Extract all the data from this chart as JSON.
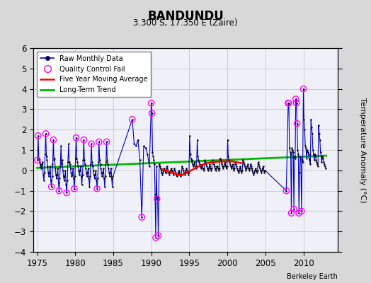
{
  "title": "BANDUNDU",
  "subtitle": "3.300 S, 17.350 E (Zaire)",
  "ylabel": "Temperature Anomaly (°C)",
  "credit": "Berkeley Earth",
  "xlim": [
    1974.5,
    2014.5
  ],
  "ylim": [
    -4,
    6
  ],
  "yticks": [
    -4,
    -3,
    -2,
    -1,
    0,
    1,
    2,
    3,
    4,
    5,
    6
  ],
  "xticks": [
    1975,
    1980,
    1985,
    1990,
    1995,
    2000,
    2005,
    2010
  ],
  "bg_color": "#e0e0e0",
  "plot_bg_color": "#f0f0f0",
  "grid_color": "#cccccc",
  "raw_color": "#0000cc",
  "qc_color": "#ff00ff",
  "moving_avg_color": "#ff0000",
  "trend_color": "#00bb00",
  "raw_monthly_data": [
    [
      1975.042,
      0.5
    ],
    [
      1975.125,
      1.7
    ],
    [
      1975.208,
      0.6
    ],
    [
      1975.292,
      0.4
    ],
    [
      1975.375,
      0.3
    ],
    [
      1975.458,
      0.2
    ],
    [
      1975.542,
      0.1
    ],
    [
      1975.625,
      0.3
    ],
    [
      1975.708,
      0.4
    ],
    [
      1975.792,
      -0.2
    ],
    [
      1975.875,
      -0.5
    ],
    [
      1975.958,
      -0.1
    ],
    [
      1976.042,
      0.8
    ],
    [
      1976.125,
      1.8
    ],
    [
      1976.208,
      0.7
    ],
    [
      1976.292,
      0.5
    ],
    [
      1976.375,
      0.2
    ],
    [
      1976.458,
      -0.1
    ],
    [
      1976.542,
      -0.3
    ],
    [
      1976.625,
      -0.1
    ],
    [
      1976.708,
      0.2
    ],
    [
      1976.792,
      -0.5
    ],
    [
      1976.875,
      -0.8
    ],
    [
      1976.958,
      -0.3
    ],
    [
      1977.042,
      0.3
    ],
    [
      1977.125,
      1.5
    ],
    [
      1977.208,
      0.5
    ],
    [
      1977.292,
      0.6
    ],
    [
      1977.375,
      0.1
    ],
    [
      1977.458,
      -0.2
    ],
    [
      1977.542,
      -0.4
    ],
    [
      1977.625,
      -0.2
    ],
    [
      1977.708,
      0.1
    ],
    [
      1977.792,
      -0.6
    ],
    [
      1977.875,
      -1.0
    ],
    [
      1977.958,
      -0.4
    ],
    [
      1978.042,
      0.2
    ],
    [
      1978.125,
      1.2
    ],
    [
      1978.208,
      0.3
    ],
    [
      1978.292,
      0.5
    ],
    [
      1978.375,
      0.0
    ],
    [
      1978.458,
      -0.3
    ],
    [
      1978.542,
      -0.5
    ],
    [
      1978.625,
      -0.3
    ],
    [
      1978.708,
      0.0
    ],
    [
      1978.792,
      -0.7
    ],
    [
      1978.875,
      -1.1
    ],
    [
      1978.958,
      -0.5
    ],
    [
      1979.042,
      0.4
    ],
    [
      1979.125,
      1.3
    ],
    [
      1979.208,
      0.4
    ],
    [
      1979.292,
      0.3
    ],
    [
      1979.375,
      0.1
    ],
    [
      1979.458,
      -0.1
    ],
    [
      1979.542,
      -0.3
    ],
    [
      1979.625,
      -0.2
    ],
    [
      1979.708,
      0.1
    ],
    [
      1979.792,
      -0.4
    ],
    [
      1979.875,
      -0.9
    ],
    [
      1979.958,
      -0.3
    ],
    [
      1980.042,
      0.6
    ],
    [
      1980.125,
      1.6
    ],
    [
      1980.208,
      0.6
    ],
    [
      1980.292,
      0.4
    ],
    [
      1980.375,
      0.2
    ],
    [
      1980.458,
      0.0
    ],
    [
      1980.542,
      -0.2
    ],
    [
      1980.625,
      0.0
    ],
    [
      1980.708,
      0.2
    ],
    [
      1980.792,
      -0.3
    ],
    [
      1980.875,
      -0.7
    ],
    [
      1980.958,
      -0.2
    ],
    [
      1981.042,
      0.5
    ],
    [
      1981.125,
      1.5
    ],
    [
      1981.208,
      0.5
    ],
    [
      1981.292,
      0.3
    ],
    [
      1981.375,
      0.1
    ],
    [
      1981.458,
      -0.1
    ],
    [
      1981.542,
      -0.3
    ],
    [
      1981.625,
      -0.1
    ],
    [
      1981.708,
      0.1
    ],
    [
      1981.792,
      -0.4
    ],
    [
      1981.875,
      -0.8
    ],
    [
      1981.958,
      -0.3
    ],
    [
      1982.042,
      0.3
    ],
    [
      1982.125,
      1.3
    ],
    [
      1982.208,
      0.4
    ],
    [
      1982.292,
      0.2
    ],
    [
      1982.375,
      0.0
    ],
    [
      1982.458,
      -0.2
    ],
    [
      1982.542,
      -0.4
    ],
    [
      1982.625,
      -0.2
    ],
    [
      1982.708,
      0.0
    ],
    [
      1982.792,
      -0.5
    ],
    [
      1982.875,
      -0.9
    ],
    [
      1982.958,
      -0.4
    ],
    [
      1983.042,
      0.4
    ],
    [
      1983.125,
      1.4
    ],
    [
      1983.208,
      0.5
    ],
    [
      1983.292,
      0.3
    ],
    [
      1983.375,
      0.1
    ],
    [
      1983.458,
      -0.1
    ],
    [
      1983.542,
      -0.3
    ],
    [
      1983.625,
      -0.1
    ],
    [
      1983.708,
      0.1
    ],
    [
      1983.792,
      -0.4
    ],
    [
      1983.875,
      -0.8
    ],
    [
      1983.958,
      -0.3
    ],
    [
      1984.042,
      0.4
    ],
    [
      1984.125,
      1.4
    ],
    [
      1984.208,
      0.5
    ],
    [
      1984.292,
      0.3
    ],
    [
      1984.375,
      0.1
    ],
    [
      1984.458,
      -0.1
    ],
    [
      1984.542,
      -0.3
    ],
    [
      1984.625,
      -0.1
    ],
    [
      1984.708,
      0.1
    ],
    [
      1984.792,
      -0.4
    ],
    [
      1984.875,
      -0.8
    ],
    [
      1984.958,
      -0.3
    ],
    [
      1987.5,
      2.5
    ],
    [
      1987.75,
      1.3
    ],
    [
      1988.0,
      1.2
    ],
    [
      1988.25,
      1.5
    ],
    [
      1988.5,
      0.5
    ],
    [
      1988.75,
      -2.3
    ],
    [
      1989.0,
      1.2
    ],
    [
      1989.25,
      1.1
    ],
    [
      1989.5,
      0.8
    ],
    [
      1989.75,
      0.2
    ],
    [
      1990.0,
      3.3
    ],
    [
      1990.083,
      2.8
    ],
    [
      1990.167,
      0.9
    ],
    [
      1990.25,
      0.7
    ],
    [
      1990.333,
      0.5
    ],
    [
      1990.417,
      0.3
    ],
    [
      1990.5,
      -1.2
    ],
    [
      1990.583,
      -3.3
    ],
    [
      1990.667,
      0.2
    ],
    [
      1990.75,
      -1.4
    ],
    [
      1990.833,
      -1.3
    ],
    [
      1990.917,
      -3.2
    ],
    [
      1991.042,
      0.3
    ],
    [
      1991.125,
      0.2
    ],
    [
      1991.208,
      0.1
    ],
    [
      1991.292,
      0.0
    ],
    [
      1991.375,
      -0.1
    ],
    [
      1991.458,
      -0.2
    ],
    [
      1991.542,
      -0.1
    ],
    [
      1991.625,
      0.0
    ],
    [
      1991.708,
      0.1
    ],
    [
      1991.792,
      0.0
    ],
    [
      1991.875,
      -0.1
    ],
    [
      1991.958,
      -0.1
    ],
    [
      1992.042,
      0.2
    ],
    [
      1992.125,
      0.1
    ],
    [
      1992.208,
      0.0
    ],
    [
      1992.292,
      -0.1
    ],
    [
      1992.375,
      -0.2
    ],
    [
      1992.458,
      -0.1
    ],
    [
      1992.542,
      0.0
    ],
    [
      1992.625,
      0.1
    ],
    [
      1992.708,
      0.0
    ],
    [
      1992.792,
      -0.1
    ],
    [
      1992.875,
      -0.2
    ],
    [
      1992.958,
      -0.1
    ],
    [
      1993.042,
      0.1
    ],
    [
      1993.125,
      0.0
    ],
    [
      1993.208,
      -0.1
    ],
    [
      1993.292,
      -0.2
    ],
    [
      1993.375,
      -0.3
    ],
    [
      1993.458,
      -0.2
    ],
    [
      1993.542,
      -0.1
    ],
    [
      1993.625,
      0.0
    ],
    [
      1993.708,
      -0.1
    ],
    [
      1993.792,
      -0.2
    ],
    [
      1993.875,
      -0.3
    ],
    [
      1993.958,
      -0.2
    ],
    [
      1994.042,
      0.2
    ],
    [
      1994.125,
      0.1
    ],
    [
      1994.208,
      0.0
    ],
    [
      1994.292,
      -0.1
    ],
    [
      1994.375,
      -0.2
    ],
    [
      1994.458,
      -0.1
    ],
    [
      1994.542,
      0.0
    ],
    [
      1994.625,
      0.1
    ],
    [
      1994.708,
      0.0
    ],
    [
      1994.792,
      -0.1
    ],
    [
      1994.875,
      -0.2
    ],
    [
      1994.958,
      -0.1
    ],
    [
      1995.042,
      1.7
    ],
    [
      1995.125,
      0.8
    ],
    [
      1995.208,
      0.6
    ],
    [
      1995.292,
      0.5
    ],
    [
      1995.375,
      0.4
    ],
    [
      1995.458,
      0.3
    ],
    [
      1995.542,
      0.2
    ],
    [
      1995.625,
      0.3
    ],
    [
      1995.708,
      0.4
    ],
    [
      1995.792,
      0.2
    ],
    [
      1995.875,
      0.1
    ],
    [
      1995.958,
      0.2
    ],
    [
      1996.042,
      1.5
    ],
    [
      1996.125,
      0.7
    ],
    [
      1996.208,
      0.5
    ],
    [
      1996.292,
      0.4
    ],
    [
      1996.375,
      0.3
    ],
    [
      1996.458,
      0.2
    ],
    [
      1996.542,
      0.1
    ],
    [
      1996.625,
      0.2
    ],
    [
      1996.708,
      0.3
    ],
    [
      1996.792,
      0.1
    ],
    [
      1996.875,
      0.0
    ],
    [
      1996.958,
      0.1
    ],
    [
      1997.042,
      0.5
    ],
    [
      1997.125,
      0.4
    ],
    [
      1997.208,
      0.3
    ],
    [
      1997.292,
      0.2
    ],
    [
      1997.375,
      0.1
    ],
    [
      1997.458,
      0.0
    ],
    [
      1997.542,
      0.1
    ],
    [
      1997.625,
      0.2
    ],
    [
      1997.708,
      0.3
    ],
    [
      1997.792,
      0.1
    ],
    [
      1997.875,
      0.0
    ],
    [
      1997.958,
      0.1
    ],
    [
      1998.042,
      0.5
    ],
    [
      1998.125,
      0.4
    ],
    [
      1998.208,
      0.3
    ],
    [
      1998.292,
      0.2
    ],
    [
      1998.375,
      0.1
    ],
    [
      1998.458,
      0.0
    ],
    [
      1998.542,
      0.1
    ],
    [
      1998.625,
      0.2
    ],
    [
      1998.708,
      0.2
    ],
    [
      1998.792,
      0.1
    ],
    [
      1998.875,
      0.0
    ],
    [
      1998.958,
      0.1
    ],
    [
      1999.042,
      0.6
    ],
    [
      1999.125,
      0.5
    ],
    [
      1999.208,
      0.4
    ],
    [
      1999.292,
      0.3
    ],
    [
      1999.375,
      0.2
    ],
    [
      1999.458,
      0.1
    ],
    [
      1999.542,
      0.2
    ],
    [
      1999.625,
      0.3
    ],
    [
      1999.708,
      0.4
    ],
    [
      1999.792,
      0.2
    ],
    [
      1999.875,
      0.1
    ],
    [
      1999.958,
      0.2
    ],
    [
      2000.042,
      1.5
    ],
    [
      2000.125,
      0.7
    ],
    [
      2000.208,
      0.5
    ],
    [
      2000.292,
      0.4
    ],
    [
      2000.375,
      0.3
    ],
    [
      2000.458,
      0.2
    ],
    [
      2000.542,
      0.1
    ],
    [
      2000.625,
      0.2
    ],
    [
      2000.708,
      0.3
    ],
    [
      2000.792,
      0.1
    ],
    [
      2000.875,
      0.0
    ],
    [
      2000.958,
      0.1
    ],
    [
      2001.042,
      0.4
    ],
    [
      2001.125,
      0.3
    ],
    [
      2001.208,
      0.2
    ],
    [
      2001.292,
      0.1
    ],
    [
      2001.375,
      0.0
    ],
    [
      2001.458,
      -0.1
    ],
    [
      2001.542,
      0.0
    ],
    [
      2001.625,
      0.1
    ],
    [
      2001.708,
      0.2
    ],
    [
      2001.792,
      0.0
    ],
    [
      2001.875,
      -0.1
    ],
    [
      2001.958,
      0.0
    ],
    [
      2002.042,
      0.5
    ],
    [
      2002.125,
      0.4
    ],
    [
      2002.208,
      0.3
    ],
    [
      2002.292,
      0.2
    ],
    [
      2002.375,
      0.1
    ],
    [
      2002.458,
      0.0
    ],
    [
      2002.542,
      0.1
    ],
    [
      2002.625,
      0.2
    ],
    [
      2002.708,
      0.3
    ],
    [
      2002.792,
      0.1
    ],
    [
      2002.875,
      0.0
    ],
    [
      2002.958,
      0.1
    ],
    [
      2003.042,
      0.3
    ],
    [
      2003.125,
      0.2
    ],
    [
      2003.208,
      0.1
    ],
    [
      2003.292,
      0.0
    ],
    [
      2003.375,
      -0.1
    ],
    [
      2003.458,
      -0.2
    ],
    [
      2003.542,
      -0.1
    ],
    [
      2003.625,
      0.0
    ],
    [
      2003.708,
      0.1
    ],
    [
      2003.792,
      0.0
    ],
    [
      2003.875,
      -0.1
    ],
    [
      2003.958,
      0.0
    ],
    [
      2004.042,
      0.4
    ],
    [
      2004.125,
      0.3
    ],
    [
      2004.208,
      0.2
    ],
    [
      2004.292,
      0.1
    ],
    [
      2004.375,
      0.0
    ],
    [
      2004.458,
      -0.1
    ],
    [
      2004.542,
      0.0
    ],
    [
      2004.625,
      0.1
    ],
    [
      2004.708,
      0.2
    ],
    [
      2004.792,
      0.0
    ],
    [
      2004.875,
      -0.1
    ],
    [
      2004.958,
      0.0
    ],
    [
      2007.75,
      -1.0
    ],
    [
      2008.0,
      3.3
    ],
    [
      2008.083,
      3.3
    ],
    [
      2008.167,
      1.1
    ],
    [
      2008.25,
      0.9
    ],
    [
      2008.333,
      0.8
    ],
    [
      2008.417,
      -2.1
    ],
    [
      2008.5,
      1.1
    ],
    [
      2008.583,
      1.0
    ],
    [
      2008.667,
      0.9
    ],
    [
      2008.75,
      -1.9
    ],
    [
      2008.833,
      0.7
    ],
    [
      2008.917,
      0.6
    ],
    [
      2009.0,
      3.5
    ],
    [
      2009.083,
      3.3
    ],
    [
      2009.167,
      2.3
    ],
    [
      2009.25,
      1.0
    ],
    [
      2009.333,
      0.8
    ],
    [
      2009.417,
      -2.1
    ],
    [
      2009.5,
      -0.1
    ],
    [
      2009.583,
      0.7
    ],
    [
      2009.667,
      0.6
    ],
    [
      2009.75,
      -2.0
    ],
    [
      2009.833,
      0.5
    ],
    [
      2009.917,
      0.4
    ],
    [
      2010.0,
      4.0
    ],
    [
      2010.083,
      2.5
    ],
    [
      2010.167,
      2.0
    ],
    [
      2010.25,
      1.2
    ],
    [
      2010.333,
      1.1
    ],
    [
      2010.417,
      0.6
    ],
    [
      2010.5,
      1.0
    ],
    [
      2010.583,
      0.9
    ],
    [
      2010.667,
      0.8
    ],
    [
      2010.75,
      0.6
    ],
    [
      2010.833,
      0.5
    ],
    [
      2010.917,
      0.3
    ],
    [
      2011.0,
      2.5
    ],
    [
      2011.083,
      2.1
    ],
    [
      2011.167,
      1.8
    ],
    [
      2011.25,
      1.0
    ],
    [
      2011.333,
      0.8
    ],
    [
      2011.417,
      0.5
    ],
    [
      2011.5,
      0.8
    ],
    [
      2011.583,
      0.7
    ],
    [
      2011.667,
      0.5
    ],
    [
      2011.75,
      0.4
    ],
    [
      2011.833,
      0.3
    ],
    [
      2011.917,
      0.2
    ],
    [
      2012.0,
      2.2
    ],
    [
      2012.083,
      1.8
    ],
    [
      2012.167,
      1.5
    ],
    [
      2012.25,
      0.9
    ],
    [
      2012.333,
      0.7
    ],
    [
      2012.417,
      0.4
    ],
    [
      2012.5,
      0.7
    ],
    [
      2012.583,
      0.6
    ],
    [
      2012.667,
      0.4
    ],
    [
      2012.75,
      0.3
    ],
    [
      2012.833,
      0.2
    ],
    [
      2012.917,
      0.1
    ]
  ],
  "qc_fail_points": [
    [
      1975.042,
      0.5
    ],
    [
      1975.125,
      1.7
    ],
    [
      1976.125,
      1.8
    ],
    [
      1976.875,
      -0.8
    ],
    [
      1977.125,
      1.5
    ],
    [
      1977.875,
      -1.0
    ],
    [
      1978.875,
      -1.1
    ],
    [
      1979.875,
      -0.9
    ],
    [
      1980.125,
      1.6
    ],
    [
      1981.125,
      1.5
    ],
    [
      1982.125,
      1.3
    ],
    [
      1982.875,
      -0.9
    ],
    [
      1983.125,
      1.4
    ],
    [
      1984.125,
      1.4
    ],
    [
      1987.5,
      2.5
    ],
    [
      1988.75,
      -2.3
    ],
    [
      1990.0,
      3.3
    ],
    [
      1990.083,
      2.8
    ],
    [
      1990.583,
      -3.3
    ],
    [
      1990.917,
      -3.2
    ],
    [
      1990.75,
      -1.4
    ],
    [
      2007.75,
      -1.0
    ],
    [
      2008.0,
      3.3
    ],
    [
      2008.083,
      3.3
    ],
    [
      2008.417,
      -2.1
    ],
    [
      2008.75,
      -1.9
    ],
    [
      2009.0,
      3.5
    ],
    [
      2009.083,
      3.3
    ],
    [
      2009.167,
      2.3
    ],
    [
      2009.417,
      -2.1
    ],
    [
      2009.75,
      -2.0
    ],
    [
      2010.0,
      4.0
    ]
  ],
  "moving_avg": [
    [
      1991.5,
      0.05
    ],
    [
      1992.0,
      -0.02
    ],
    [
      1992.5,
      -0.08
    ],
    [
      1993.0,
      -0.15
    ],
    [
      1993.5,
      -0.22
    ],
    [
      1994.0,
      -0.22
    ],
    [
      1994.5,
      -0.15
    ],
    [
      1995.0,
      -0.05
    ],
    [
      1995.5,
      0.05
    ],
    [
      1996.0,
      0.15
    ],
    [
      1996.5,
      0.25
    ],
    [
      1997.0,
      0.32
    ],
    [
      1997.5,
      0.37
    ],
    [
      1998.0,
      0.4
    ],
    [
      1998.5,
      0.42
    ],
    [
      1999.0,
      0.43
    ],
    [
      1999.5,
      0.44
    ],
    [
      2000.0,
      0.45
    ],
    [
      2000.5,
      0.44
    ],
    [
      2001.0,
      0.42
    ],
    [
      2001.5,
      0.38
    ],
    [
      2002.0,
      0.35
    ]
  ],
  "trend_line": [
    [
      1975,
      0.12
    ],
    [
      2013,
      0.72
    ]
  ]
}
